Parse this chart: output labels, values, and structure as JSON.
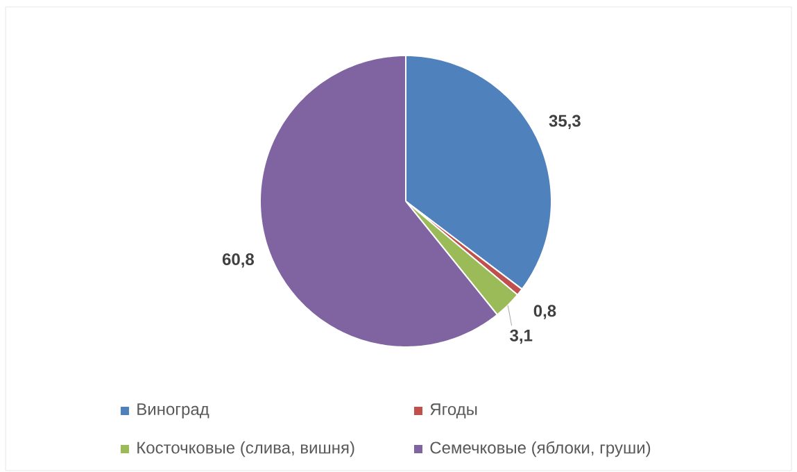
{
  "chart_data": {
    "type": "pie",
    "categories": [
      "Виноград",
      "Ягоды",
      "Косточковые (слива, вишня)",
      "Семечковые (яблоки, груши)"
    ],
    "values": [
      35.3,
      0.8,
      3.1,
      60.8
    ],
    "colors": [
      "#4f81bd",
      "#c0504d",
      "#9bbb59",
      "#8064a2"
    ],
    "value_labels": [
      "35,3",
      "0,8",
      "3,1",
      "60,8"
    ],
    "legend": "bottom"
  }
}
